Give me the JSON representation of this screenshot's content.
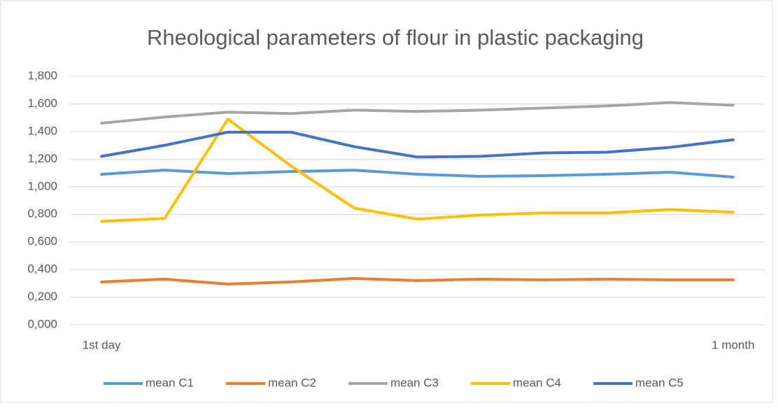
{
  "chart_data": {
    "type": "line",
    "title": "Rheological parameters of flour in plastic packaging",
    "categories": [
      "1st day",
      null,
      null,
      null,
      null,
      null,
      null,
      null,
      null,
      null,
      "1 month"
    ],
    "series": [
      {
        "name": "mean C1",
        "color": "#5b9bd5",
        "values": [
          1.09,
          1.12,
          1.095,
          1.11,
          1.12,
          1.09,
          1.075,
          1.08,
          1.09,
          1.105,
          1.07
        ]
      },
      {
        "name": "mean C2",
        "color": "#ed7d31",
        "values": [
          0.31,
          0.33,
          0.295,
          0.31,
          0.335,
          0.32,
          0.33,
          0.325,
          0.33,
          0.325,
          0.325
        ]
      },
      {
        "name": "mean C3",
        "color": "#a5a5a5",
        "values": [
          1.46,
          1.505,
          1.54,
          1.53,
          1.555,
          1.545,
          1.555,
          1.57,
          1.585,
          1.61,
          1.59
        ]
      },
      {
        "name": "mean C4",
        "color": "#ffc000",
        "values": [
          0.75,
          0.77,
          1.49,
          1.15,
          0.845,
          0.765,
          0.795,
          0.81,
          0.81,
          0.835,
          0.815
        ]
      },
      {
        "name": "mean C5",
        "color": "#4472c4",
        "values": [
          1.22,
          1.3,
          1.395,
          1.395,
          1.29,
          1.215,
          1.22,
          1.245,
          1.25,
          1.285,
          1.34
        ]
      }
    ],
    "ylim": [
      0,
      1.8
    ],
    "yticks": [
      {
        "value": 0,
        "label": "0,000"
      },
      {
        "value": 0.2,
        "label": "0,200"
      },
      {
        "value": 0.4,
        "label": "0,400"
      },
      {
        "value": 0.6,
        "label": "0,600"
      },
      {
        "value": 0.8,
        "label": "0,800"
      },
      {
        "value": 1.0,
        "label": "1,000"
      },
      {
        "value": 1.2,
        "label": "1,200"
      },
      {
        "value": 1.4,
        "label": "1,400"
      },
      {
        "value": 1.6,
        "label": "1,600"
      },
      {
        "value": 1.8,
        "label": "1,800"
      }
    ],
    "grid": true,
    "legend": "bottom"
  }
}
